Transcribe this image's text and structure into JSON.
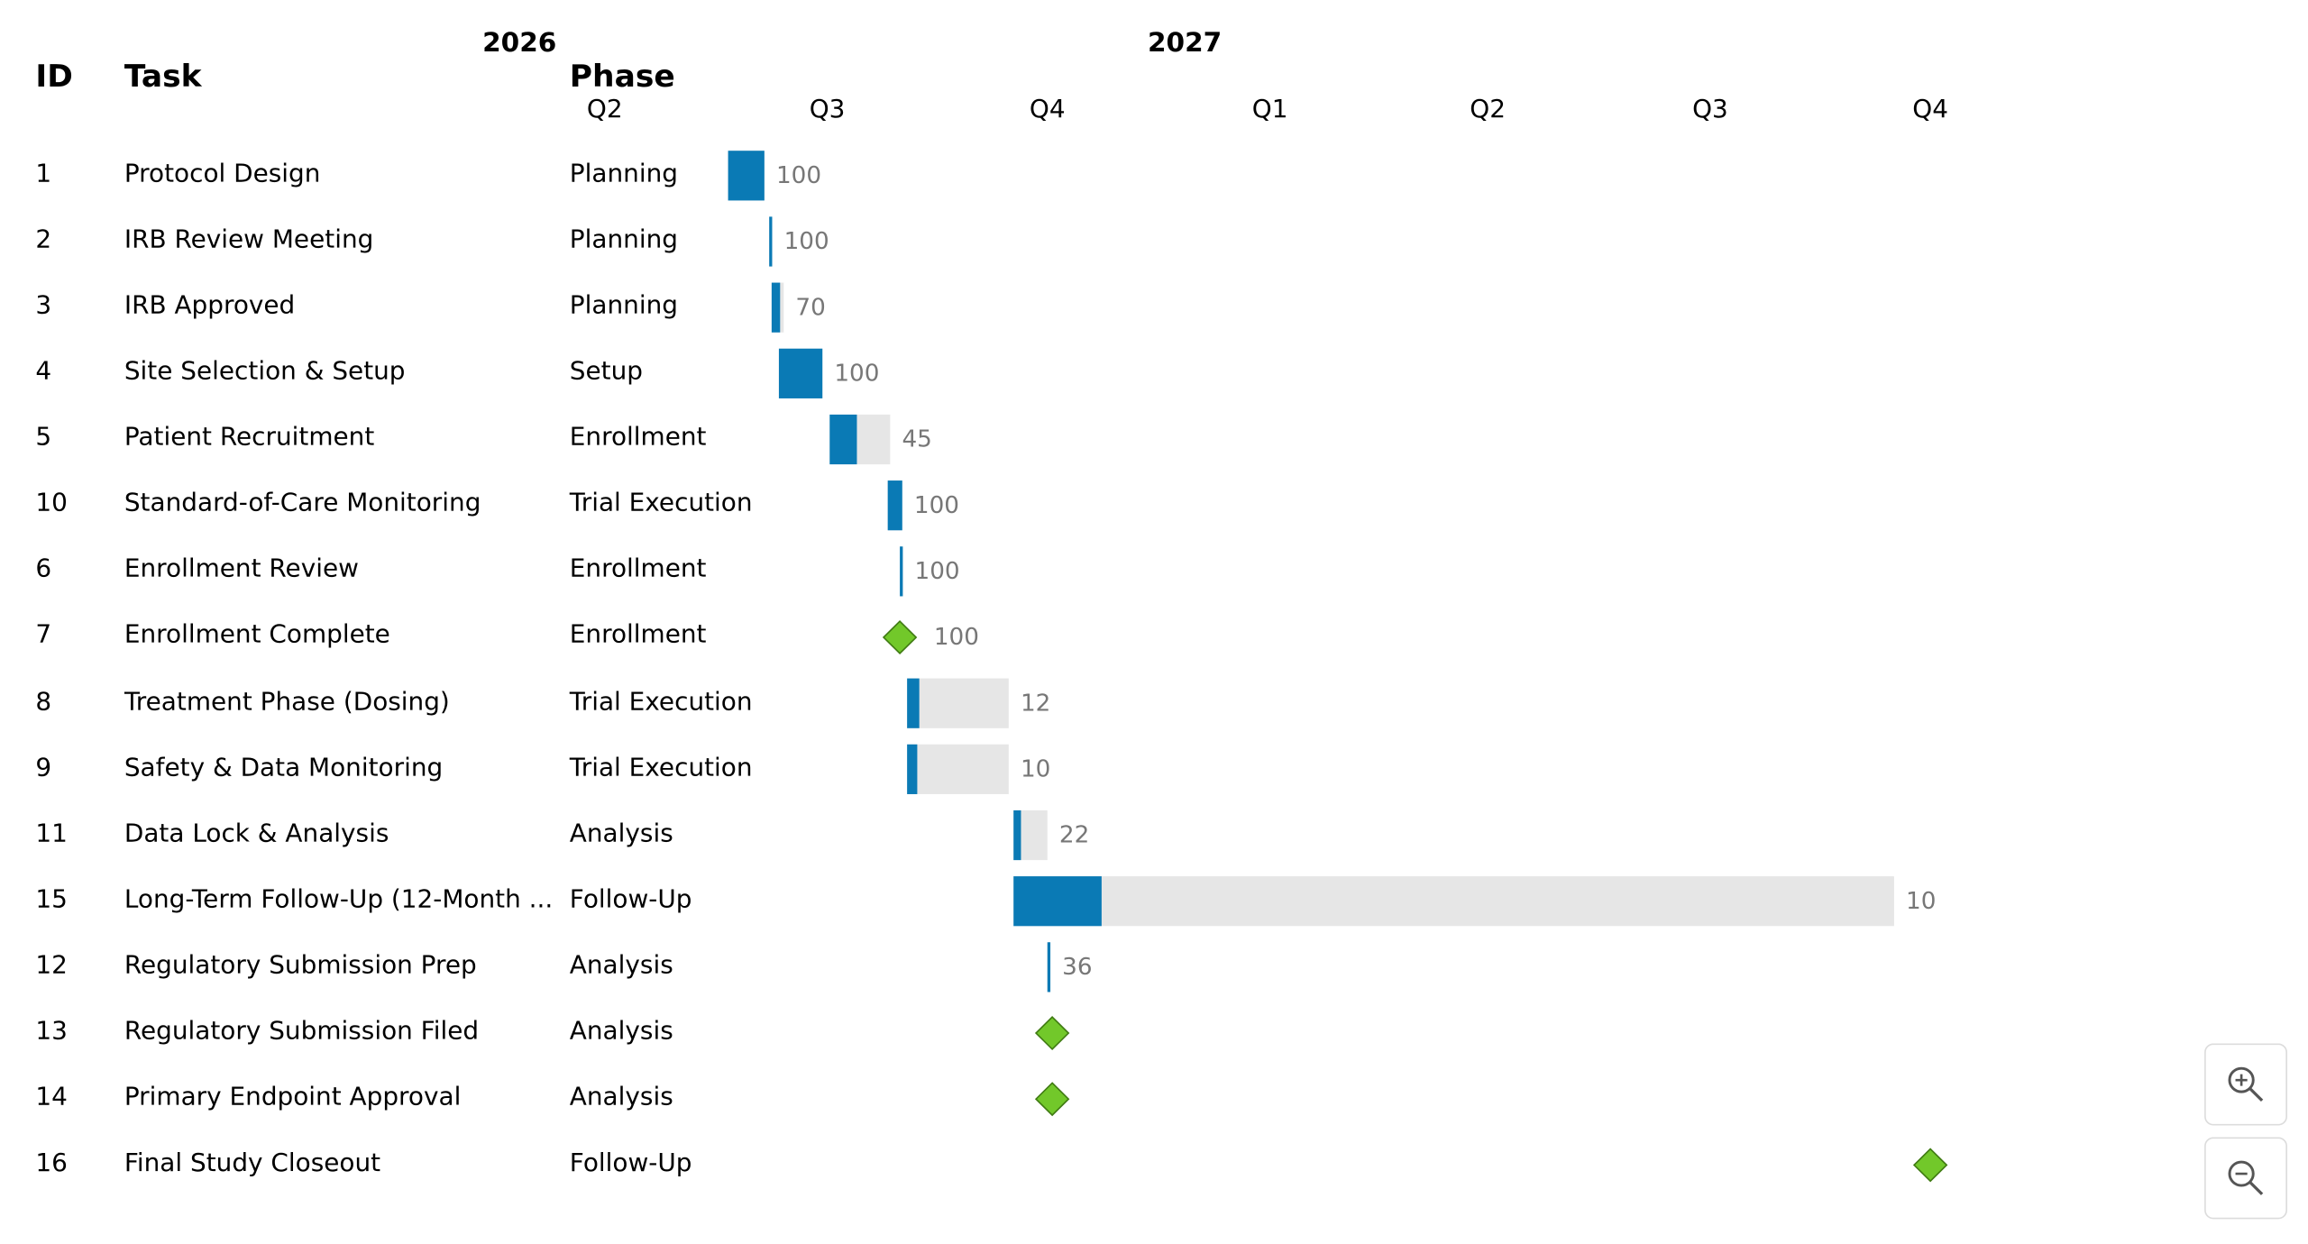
{
  "headers": {
    "id": "ID",
    "task": "Task",
    "phase": "Phase"
  },
  "timeline": {
    "years": [
      {
        "label": "2026",
        "date": "2026-04-01"
      },
      {
        "label": "2027",
        "date": "2027-01-01"
      }
    ],
    "quarters": [
      {
        "label": "Q2",
        "date": "2026-05-16"
      },
      {
        "label": "Q3",
        "date": "2026-08-16"
      },
      {
        "label": "Q4",
        "date": "2026-11-15"
      },
      {
        "label": "Q1",
        "date": "2027-02-15"
      },
      {
        "label": "Q2",
        "date": "2027-05-16"
      },
      {
        "label": "Q3",
        "date": "2027-08-16"
      },
      {
        "label": "Q4",
        "date": "2027-11-15"
      }
    ],
    "range": [
      "2026-04-01",
      "2027-12-31"
    ]
  },
  "colors": {
    "progress": "#0a7ab5",
    "remaining": "#e6e6e6",
    "milestone": "#72c82a",
    "milestone_border": "#3f7a12"
  },
  "chart_data": {
    "type": "gantt",
    "tasks": [
      {
        "id": "1",
        "task": "Protocol Design",
        "phase": "Planning",
        "start": "2026-07-06",
        "end": "2026-07-21",
        "progress": 100,
        "milestone": false,
        "label": "100"
      },
      {
        "id": "2",
        "task": "IRB Review Meeting",
        "phase": "Planning",
        "start": "2026-07-23",
        "end": "2026-07-24",
        "progress": 100,
        "milestone": false,
        "label": "100"
      },
      {
        "id": "3",
        "task": "IRB Approved",
        "phase": "Planning",
        "start": "2026-07-24",
        "end": "2026-07-29",
        "progress": 70,
        "milestone": false,
        "label": "70"
      },
      {
        "id": "4",
        "task": "Site Selection & Setup",
        "phase": "Setup",
        "start": "2026-07-27",
        "end": "2026-08-14",
        "progress": 100,
        "milestone": false,
        "label": "100"
      },
      {
        "id": "5",
        "task": "Patient Recruitment",
        "phase": "Enrollment",
        "start": "2026-08-17",
        "end": "2026-09-11",
        "progress": 45,
        "milestone": false,
        "label": "45"
      },
      {
        "id": "10",
        "task": "Standard-of-Care Monitoring",
        "phase": "Trial Execution",
        "start": "2026-09-10",
        "end": "2026-09-16",
        "progress": 100,
        "milestone": false,
        "label": "100"
      },
      {
        "id": "6",
        "task": "Enrollment Review",
        "phase": "Enrollment",
        "start": "2026-09-15",
        "end": "2026-09-16",
        "progress": 100,
        "milestone": false,
        "label": "100"
      },
      {
        "id": "7",
        "task": "Enrollment Complete",
        "phase": "Enrollment",
        "start": "2026-09-15",
        "end": "2026-09-15",
        "progress": 100,
        "milestone": true,
        "label": "100"
      },
      {
        "id": "8",
        "task": "Treatment Phase (Dosing)",
        "phase": "Trial Execution",
        "start": "2026-09-18",
        "end": "2026-10-30",
        "progress": 12,
        "milestone": false,
        "label": "12"
      },
      {
        "id": "9",
        "task": "Safety & Data Monitoring",
        "phase": "Trial Execution",
        "start": "2026-09-18",
        "end": "2026-10-30",
        "progress": 10,
        "milestone": false,
        "label": "10"
      },
      {
        "id": "11",
        "task": "Data Lock & Analysis",
        "phase": "Analysis",
        "start": "2026-11-01",
        "end": "2026-11-15",
        "progress": 22,
        "milestone": false,
        "label": "22"
      },
      {
        "id": "15",
        "task": "Long-Term Follow-Up (12-Month ...",
        "phase": "Follow-Up",
        "start": "2026-11-01",
        "end": "2027-10-31",
        "progress": 10,
        "milestone": false,
        "label": "10"
      },
      {
        "id": "12",
        "task": "Regulatory Submission Prep",
        "phase": "Analysis",
        "start": "2026-11-15",
        "end": "2026-11-16",
        "progress": 36,
        "milestone": false,
        "label": "36"
      },
      {
        "id": "13",
        "task": "Regulatory Submission Filed",
        "phase": "Analysis",
        "start": "2026-11-17",
        "end": "2026-11-17",
        "progress": 0,
        "milestone": true,
        "label": ""
      },
      {
        "id": "14",
        "task": "Primary Endpoint Approval",
        "phase": "Analysis",
        "start": "2026-11-17",
        "end": "2026-11-17",
        "progress": 0,
        "milestone": true,
        "label": ""
      },
      {
        "id": "16",
        "task": "Final Study Closeout",
        "phase": "Follow-Up",
        "start": "2027-11-15",
        "end": "2027-11-15",
        "progress": 0,
        "milestone": true,
        "label": ""
      }
    ]
  },
  "controls": {
    "zoom_in_icon": "zoom-in-icon",
    "zoom_out_icon": "zoom-out-icon"
  }
}
